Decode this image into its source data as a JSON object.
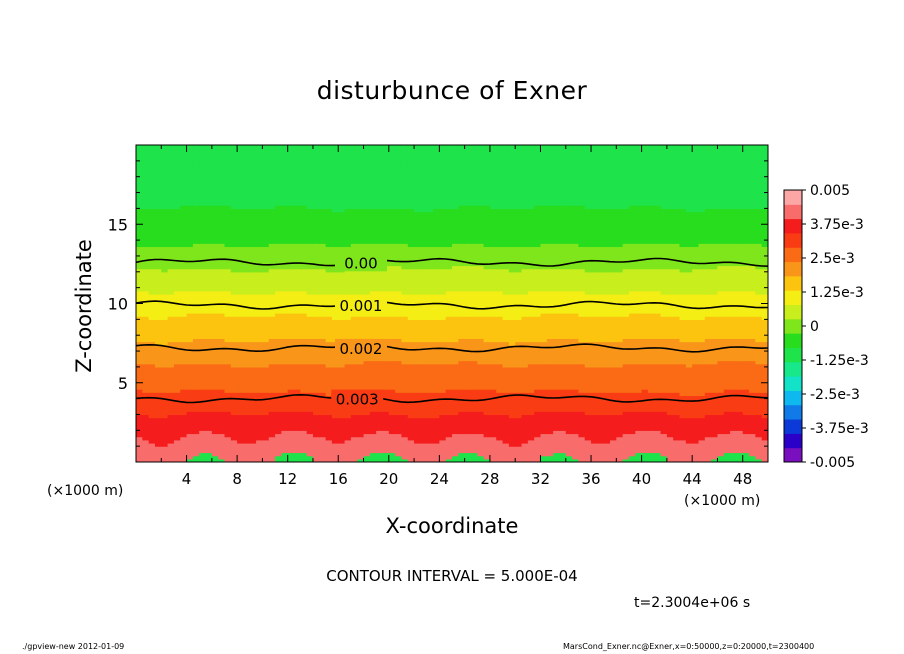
{
  "chart_data": {
    "type": "heatmap",
    "title": "disturbunce of Exner",
    "xlabel": "X-coordinate",
    "ylabel": "Z-coordinate",
    "x_unit": "(×1000 m)",
    "xlim": [
      0,
      50
    ],
    "ylim": [
      0,
      20
    ],
    "x_ticks": [
      "4",
      "8",
      "12",
      "16",
      "20",
      "24",
      "28",
      "32",
      "36",
      "40",
      "44",
      "48"
    ],
    "y_ticks": [
      "5",
      "10",
      "15"
    ],
    "contour_interval_label": "CONTOUR INTERVAL = 5.000E-04",
    "contour_lines": [
      {
        "label": "0.00",
        "value": 0.0,
        "z": 12.6
      },
      {
        "label": "0.001",
        "value": 0.001,
        "z": 9.9
      },
      {
        "label": "0.002",
        "value": 0.002,
        "z": 7.2
      },
      {
        "label": "0.003",
        "value": 0.003,
        "z": 4.0
      }
    ],
    "colorbar": {
      "labels": [
        "0.005",
        "3.75e-3",
        "2.5e-3",
        "1.25e-3",
        "0",
        "-1.25e-3",
        "-2.5e-3",
        "-3.75e-3",
        "-0.005"
      ],
      "range": [
        -0.005,
        0.005
      ]
    },
    "field_by_height": [
      {
        "z": 0,
        "value": 0.0044
      },
      {
        "z": 2,
        "value": 0.0038
      },
      {
        "z": 4,
        "value": 0.003
      },
      {
        "z": 6,
        "value": 0.0024
      },
      {
        "z": 8,
        "value": 0.0017
      },
      {
        "z": 10,
        "value": 0.001
      },
      {
        "z": 12,
        "value": 0.0003
      },
      {
        "z": 14,
        "value": -0.0004
      },
      {
        "z": 16,
        "value": -0.0008
      },
      {
        "z": 18,
        "value": -0.0011
      },
      {
        "z": 20,
        "value": -0.0012
      }
    ],
    "colors": {
      "levels": [
        "#7a0fbf",
        "#2b00c8",
        "#0c3ad8",
        "#0f7ae8",
        "#0fb8ee",
        "#12e3c8",
        "#17e88a",
        "#1ee34a",
        "#28dc1e",
        "#7fe61c",
        "#c8ee1d",
        "#f4ee14",
        "#fcc40f",
        "#f9961a",
        "#fb6a14",
        "#f93c14",
        "#f41c1c",
        "#f86c6c",
        "#fca6a6"
      ]
    }
  },
  "time": "t=2.3004e+06 s",
  "footer": {
    "left": "./gpview-new   2012-01-09",
    "right": "MarsCond_Exner.nc@Exner,x=0:50000,z=0:20000,t=2300400"
  }
}
